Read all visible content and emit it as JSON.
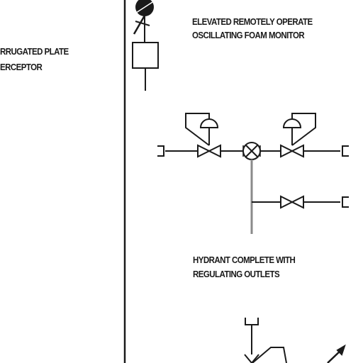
{
  "labels": {
    "interceptor": {
      "line1": "RRUGATED PLATE",
      "line2": "ERCEPTOR"
    },
    "foam_monitor": {
      "line1": "ELEVATED REMOTELY OPERATE",
      "line2": "OSCILLATING FOAM MONITOR"
    },
    "hydrant": {
      "line1": "HYDRANT COMPLETE WITH",
      "line2": "REGULATING OUTLETS"
    }
  },
  "colors": {
    "line": "#1a1a1a",
    "pipe_grey": "#8a8a8a",
    "background": "#ffffff"
  }
}
